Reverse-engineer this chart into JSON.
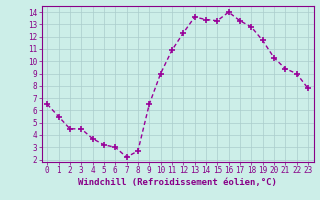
{
  "x": [
    0,
    1,
    2,
    3,
    4,
    5,
    6,
    7,
    8,
    9,
    10,
    11,
    12,
    13,
    14,
    15,
    16,
    17,
    18,
    19,
    20,
    21,
    22,
    23
  ],
  "y": [
    6.5,
    5.5,
    4.5,
    4.5,
    3.7,
    3.2,
    3.0,
    2.2,
    2.7,
    6.5,
    9.0,
    10.9,
    12.3,
    13.6,
    13.4,
    13.3,
    14.0,
    13.3,
    12.8,
    11.7,
    10.3,
    9.4,
    9.0,
    7.8
  ],
  "line_color": "#990099",
  "marker": "+",
  "marker_size": 4,
  "marker_lw": 1.2,
  "bg_color": "#cceee8",
  "grid_color": "#aacccc",
  "xlabel": "Windchill (Refroidissement éolien,°C)",
  "xlim": [
    -0.5,
    23.5
  ],
  "ylim": [
    1.8,
    14.5
  ],
  "yticks": [
    2,
    3,
    4,
    5,
    6,
    7,
    8,
    9,
    10,
    11,
    12,
    13,
    14
  ],
  "xticks": [
    0,
    1,
    2,
    3,
    4,
    5,
    6,
    7,
    8,
    9,
    10,
    11,
    12,
    13,
    14,
    15,
    16,
    17,
    18,
    19,
    20,
    21,
    22,
    23
  ],
  "tick_color": "#880088",
  "spine_color": "#880088",
  "label_fontsize": 6.5,
  "tick_fontsize": 5.5,
  "linewidth": 1.0
}
